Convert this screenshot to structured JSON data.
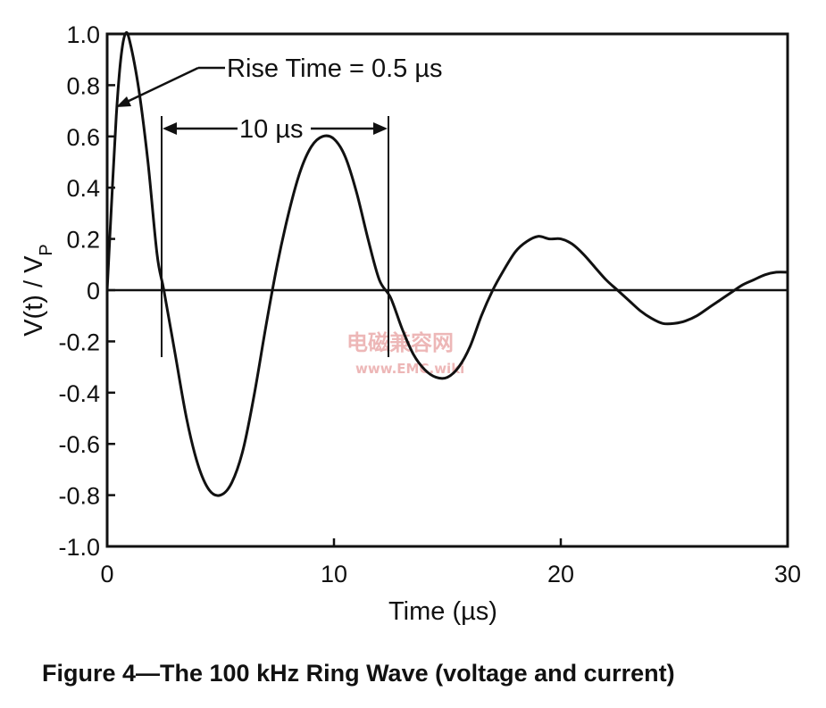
{
  "chart_data": {
    "type": "line",
    "xlabel": "Time (µs)",
    "ylabel_main": "V(t) / V",
    "ylabel_sub": "P",
    "xlim": [
      0,
      30
    ],
    "ylim": [
      -1.0,
      1.0
    ],
    "x_ticks": [
      0,
      10,
      20,
      30
    ],
    "x_tick_labels": [
      "0",
      "10",
      "20",
      "30"
    ],
    "y_ticks": [
      1.0,
      0.8,
      0.6,
      0.4,
      0.2,
      0,
      -0.2,
      -0.4,
      -0.6,
      -0.8,
      -1.0
    ],
    "y_tick_labels": [
      "1.0",
      "0.8",
      "0.6",
      "0.4",
      "0.2",
      "0",
      "-0.2",
      "-0.4",
      "-0.6",
      "-0.8",
      "-1.0"
    ],
    "grid": false,
    "series": [
      {
        "x": [
          0,
          0.2,
          0.4,
          0.6,
          0.8,
          1.0,
          1.4,
          1.8,
          2.2,
          2.5,
          3.0,
          3.5,
          4.0,
          4.5,
          5.0,
          5.5,
          6.0,
          6.5,
          7.0,
          7.5,
          8.0,
          8.5,
          9.0,
          9.5,
          10.0,
          10.5,
          11.0,
          11.5,
          12.0,
          12.5,
          13.0,
          13.5,
          14.0,
          14.5,
          15.0,
          15.5,
          16.0,
          16.5,
          17.0,
          17.5,
          18.0,
          18.5,
          19.0,
          19.5,
          20.0,
          20.5,
          21.0,
          21.5,
          22.0,
          22.5,
          23.0,
          23.5,
          24.0,
          24.5,
          25.0,
          25.5,
          26.0,
          26.5,
          27.0,
          27.5,
          28.0,
          28.5,
          29.0,
          29.5,
          30.0
        ],
        "y": [
          0,
          0.35,
          0.68,
          0.9,
          1.0,
          0.97,
          0.78,
          0.5,
          0.14,
          0.0,
          -0.25,
          -0.5,
          -0.68,
          -0.78,
          -0.8,
          -0.75,
          -0.62,
          -0.4,
          -0.14,
          0.1,
          0.3,
          0.46,
          0.56,
          0.6,
          0.59,
          0.52,
          0.38,
          0.2,
          0.04,
          -0.03,
          -0.15,
          -0.25,
          -0.31,
          -0.34,
          -0.34,
          -0.3,
          -0.22,
          -0.1,
          0.0,
          0.08,
          0.15,
          0.19,
          0.21,
          0.2,
          0.2,
          0.18,
          0.14,
          0.09,
          0.04,
          0.0,
          -0.04,
          -0.08,
          -0.11,
          -0.13,
          -0.13,
          -0.12,
          -0.1,
          -0.07,
          -0.04,
          -0.01,
          0.02,
          0.04,
          0.06,
          0.07,
          0.07
        ]
      }
    ],
    "annotations": {
      "rise_time": {
        "text": "Rise Time = 0.5 µs",
        "x": 0.3,
        "y": 0.72
      },
      "period": {
        "text": "10 µs",
        "x_start": 2.5,
        "x_end": 12.5,
        "y": 0.62
      }
    },
    "caption": "Figure 4—The 100 kHz Ring Wave (voltage and current)"
  },
  "watermark": {
    "line1": "电磁兼容网",
    "line2": "www.EMC.wiki"
  }
}
